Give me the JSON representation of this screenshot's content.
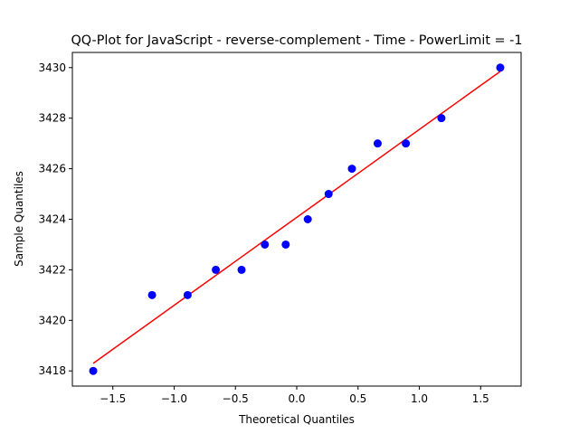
{
  "chart_data": {
    "type": "scatter",
    "title": "QQ-Plot for JavaScript - reverse-complement - Time - PowerLimit = -1",
    "xlabel": "Theoretical Quantiles",
    "ylabel": "Sample Quantiles",
    "xlim": [
      -1.83,
      1.83
    ],
    "ylim": [
      3417.4,
      3430.6
    ],
    "xticks": [
      -1.5,
      -1.0,
      -0.5,
      0.0,
      0.5,
      1.0,
      1.5
    ],
    "xtick_labels": [
      "−1.5",
      "−1.0",
      "−0.5",
      "0.0",
      "0.5",
      "1.0",
      "1.5"
    ],
    "yticks": [
      3418,
      3420,
      3422,
      3424,
      3426,
      3428,
      3430
    ],
    "ytick_labels": [
      "3418",
      "3420",
      "3422",
      "3424",
      "3426",
      "3428",
      "3430"
    ],
    "grid": false,
    "series": [
      {
        "kind": "points",
        "color": "#0000ff",
        "x": [
          -1.66,
          -1.18,
          -0.89,
          -0.66,
          -0.45,
          -0.26,
          -0.09,
          0.09,
          0.26,
          0.45,
          0.66,
          0.89,
          1.18,
          1.66
        ],
        "y": [
          3418,
          3421,
          3421,
          3422,
          3422,
          3423,
          3423,
          3424,
          3425,
          3426,
          3427,
          3427,
          3428,
          3430
        ]
      },
      {
        "kind": "line",
        "color": "#ff0000",
        "x": [
          -1.66,
          1.66
        ],
        "y": [
          3418.3,
          3429.85
        ]
      }
    ]
  }
}
